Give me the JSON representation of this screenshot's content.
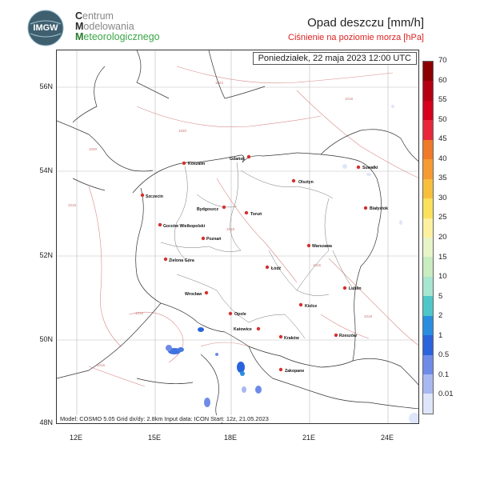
{
  "brand": {
    "logo_text": "IMGW",
    "line1_initial": "C",
    "line1_rest": "entrum",
    "line2_initial": "M",
    "line2_rest": "odelowania",
    "line3_initial": "M",
    "line3_rest": "eteorologicznego"
  },
  "title": "Opad deszczu [mm/h]",
  "subtitle": "Ciśnienie na poziomie morza [hPa]",
  "datetime": "Poniedziałek, 22 maja 2023 12:00 UTC",
  "footer": "Model: COSMO 5.05  Grid dx/dy: 2.8km  Input data: ICON  Start: 12z, 21.05.2023",
  "axes": {
    "lat_labels": [
      "56N",
      "54N",
      "52N",
      "50N",
      "48N"
    ],
    "lon_labels": [
      "12E",
      "15E",
      "18E",
      "21E",
      "24E"
    ]
  },
  "colorbar": {
    "labels": [
      "70",
      "60",
      "55",
      "50",
      "45",
      "40",
      "35",
      "30",
      "25",
      "20",
      "15",
      "10",
      "5",
      "2",
      "1",
      "0.5",
      "0.1",
      "0.01"
    ],
    "colors": [
      "#8b0000",
      "#b50012",
      "#d6001c",
      "#e8283a",
      "#f07a2a",
      "#f59b32",
      "#f8bf3c",
      "#fbe05a",
      "#fdf1a0",
      "#e7f5c8",
      "#c9ecc0",
      "#a7e6d0",
      "#4fc7c9",
      "#2a8ee0",
      "#2a64dc",
      "#6e8be8",
      "#a8b8f0",
      "#dfe5fa"
    ]
  },
  "isobar_labels": [
    "1022",
    "1020",
    "1018",
    "1016",
    "1018",
    "1018",
    "1016",
    "1016",
    "1018",
    "1020"
  ],
  "cities": [
    {
      "name": "Gdańsk"
    },
    {
      "name": "Koszalin"
    },
    {
      "name": "Olsztyn"
    },
    {
      "name": "Suwałki"
    },
    {
      "name": "Szczecin"
    },
    {
      "name": "Bydgoszcz"
    },
    {
      "name": "Toruń"
    },
    {
      "name": "Białystok"
    },
    {
      "name": "Gorzów Wielkopolski"
    },
    {
      "name": "Poznań"
    },
    {
      "name": "Warszawa"
    },
    {
      "name": "Zielona Góra"
    },
    {
      "name": "Łódź"
    },
    {
      "name": "Lublin"
    },
    {
      "name": "Wrocław"
    },
    {
      "name": "Opole"
    },
    {
      "name": "Kielce"
    },
    {
      "name": "Katowice"
    },
    {
      "name": "Kraków"
    },
    {
      "name": "Rzeszów"
    },
    {
      "name": "Zakopane"
    }
  ]
}
